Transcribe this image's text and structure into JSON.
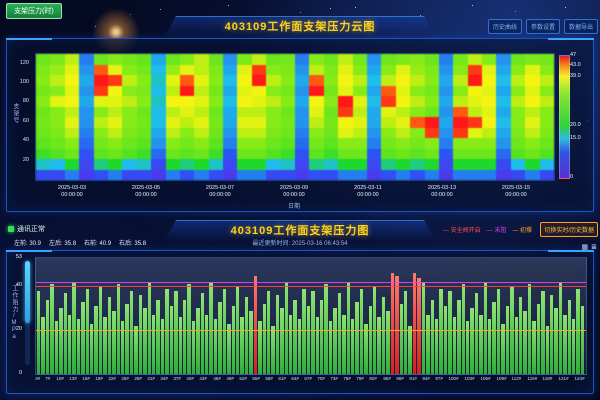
{
  "page": {
    "top_left_button": "支架压力(时)"
  },
  "cloud_section": {
    "title": "403109工作面支架压力云图",
    "buttons": [
      "历史曲线",
      "参数设置",
      "数据导出"
    ]
  },
  "pressure_section": {
    "title": "403109工作面支架压力图",
    "status_label": "通讯正常",
    "legend": [
      {
        "label": "安全阀开启",
        "color": "#ff4d4d"
      },
      {
        "label": "末阻",
        "color": "#e040fb"
      },
      {
        "label": "初撑",
        "color": "#ffa726"
      }
    ],
    "switch_button": "切换实时/历史数据",
    "readouts": [
      {
        "label": "左前",
        "value": "30.9"
      },
      {
        "label": "左后",
        "value": "35.8"
      },
      {
        "label": "右前",
        "value": "40.9"
      },
      {
        "label": "右后",
        "value": "35.8"
      }
    ],
    "update_time": "最近更新时间: 2025-03-16 06:43:54"
  },
  "chart_data": [
    {
      "type": "heatmap",
      "title": "403109工作面支架压力云图",
      "xlabel": "日期",
      "ylabel": "支架号",
      "x_range": [
        "2025-03-02 00:00:00",
        "2025-03-16 00:00:00"
      ],
      "x_ticks": [
        {
          "date": "2025-03-03",
          "time": "00:00:00"
        },
        {
          "date": "2025-03-05",
          "time": "00:00:00"
        },
        {
          "date": "2025-03-07",
          "time": "00:00:00"
        },
        {
          "date": "2025-03-09",
          "time": "00:00:00"
        },
        {
          "date": "2025-03-11",
          "time": "00:00:00"
        },
        {
          "date": "2025-03-13",
          "time": "00:00:00"
        },
        {
          "date": "2025-03-15",
          "time": "00:00:00"
        }
      ],
      "y_range": [
        0,
        130
      ],
      "y_ticks": [
        120,
        100,
        80,
        60,
        40,
        20
      ],
      "zlim": [
        0,
        47
      ],
      "colorbar_ticks": [
        {
          "label": "47",
          "value": 47
        },
        {
          "label": "43.0",
          "value": 43
        },
        {
          "label": "39.0",
          "value": 39
        },
        {
          "label": "20.0",
          "value": 20
        },
        {
          "label": "15.0",
          "value": 15
        },
        {
          "label": "0",
          "value": 0
        }
      ],
      "values": [
        [
          30,
          32,
          36,
          12,
          30,
          33,
          31,
          29,
          14,
          30,
          33,
          36,
          30,
          13,
          32,
          36,
          30,
          31,
          12,
          33,
          30,
          36,
          31,
          13,
          30,
          32,
          33,
          30,
          12,
          31,
          36,
          33,
          13,
          30,
          32,
          31
        ],
        [
          32,
          34,
          38,
          13,
          45,
          38,
          33,
          31,
          15,
          34,
          38,
          36,
          32,
          14,
          38,
          46,
          33,
          32,
          13,
          36,
          32,
          38,
          33,
          14,
          33,
          38,
          34,
          32,
          13,
          33,
          46,
          38,
          14,
          33,
          38,
          33
        ],
        [
          33,
          36,
          39,
          14,
          47,
          46,
          36,
          33,
          16,
          38,
          45,
          38,
          33,
          15,
          39,
          47,
          36,
          33,
          14,
          45,
          33,
          39,
          36,
          15,
          36,
          39,
          36,
          33,
          14,
          36,
          47,
          39,
          15,
          36,
          39,
          36
        ],
        [
          31,
          33,
          38,
          13,
          46,
          39,
          33,
          32,
          15,
          36,
          47,
          36,
          31,
          14,
          38,
          39,
          33,
          31,
          13,
          47,
          31,
          38,
          33,
          14,
          45,
          38,
          33,
          31,
          13,
          33,
          39,
          38,
          14,
          33,
          38,
          33
        ],
        [
          33,
          38,
          39,
          14,
          38,
          38,
          36,
          33,
          16,
          39,
          39,
          38,
          33,
          15,
          39,
          38,
          36,
          33,
          14,
          39,
          33,
          47,
          38,
          15,
          46,
          39,
          36,
          33,
          14,
          36,
          38,
          39,
          15,
          36,
          39,
          36
        ],
        [
          30,
          33,
          36,
          13,
          33,
          36,
          33,
          30,
          15,
          36,
          38,
          36,
          30,
          14,
          36,
          36,
          33,
          30,
          13,
          38,
          30,
          46,
          36,
          14,
          38,
          36,
          33,
          30,
          13,
          45,
          36,
          38,
          14,
          33,
          36,
          33
        ],
        [
          31,
          33,
          38,
          13,
          36,
          38,
          33,
          31,
          15,
          38,
          36,
          38,
          31,
          14,
          38,
          38,
          33,
          31,
          13,
          36,
          31,
          39,
          38,
          14,
          36,
          38,
          45,
          47,
          14,
          47,
          46,
          39,
          15,
          33,
          38,
          33
        ],
        [
          30,
          32,
          36,
          12,
          33,
          36,
          32,
          30,
          14,
          36,
          33,
          36,
          30,
          13,
          36,
          36,
          32,
          30,
          12,
          33,
          30,
          38,
          36,
          13,
          33,
          36,
          33,
          46,
          13,
          46,
          38,
          36,
          14,
          32,
          36,
          32
        ],
        [
          28,
          30,
          33,
          11,
          31,
          33,
          30,
          28,
          13,
          33,
          31,
          33,
          28,
          12,
          33,
          33,
          30,
          28,
          11,
          31,
          28,
          33,
          33,
          12,
          31,
          33,
          31,
          33,
          12,
          33,
          33,
          33,
          13,
          30,
          33,
          30
        ],
        [
          24,
          27,
          30,
          9,
          28,
          30,
          27,
          24,
          11,
          30,
          28,
          30,
          24,
          10,
          30,
          30,
          27,
          24,
          9,
          28,
          24,
          30,
          30,
          10,
          28,
          30,
          28,
          30,
          10,
          30,
          30,
          30,
          11,
          27,
          30,
          27
        ],
        [
          16,
          15,
          20,
          6,
          18,
          20,
          15,
          16,
          7,
          20,
          18,
          20,
          16,
          6,
          20,
          20,
          15,
          16,
          6,
          18,
          16,
          20,
          20,
          7,
          18,
          20,
          18,
          20,
          6,
          20,
          20,
          20,
          7,
          15,
          20,
          15
        ],
        [
          8,
          7,
          12,
          4,
          9,
          12,
          7,
          8,
          4,
          12,
          9,
          12,
          8,
          4,
          12,
          12,
          7,
          8,
          4,
          9,
          8,
          12,
          12,
          4,
          9,
          12,
          9,
          12,
          4,
          12,
          12,
          12,
          4,
          7,
          12,
          7
        ]
      ]
    },
    {
      "type": "bar",
      "title": "403109工作面支架压力图",
      "xlabel": "",
      "ylabel": "工作阻力/MPa",
      "ylim": [
        0,
        53
      ],
      "y_ticks": [
        53,
        40,
        20,
        0
      ],
      "num_bars": 124,
      "x_tick_labels": [
        "4#",
        "7#",
        "10#",
        "13#",
        "16#",
        "19#",
        "22#",
        "25#",
        "28#",
        "31#",
        "34#",
        "37#",
        "40#",
        "43#",
        "46#",
        "49#",
        "52#",
        "55#",
        "58#",
        "61#",
        "64#",
        "67#",
        "70#",
        "73#",
        "76#",
        "79#",
        "82#",
        "85#",
        "88#",
        "91#",
        "94#",
        "97#",
        "100#",
        "103#",
        "106#",
        "109#",
        "112#",
        "115#",
        "118#",
        "121#",
        "124#"
      ],
      "values": [
        38,
        26,
        34,
        41,
        24,
        30,
        37,
        27,
        42,
        25,
        33,
        39,
        23,
        31,
        40,
        26,
        35,
        29,
        41,
        24,
        32,
        38,
        22,
        36,
        30,
        42,
        27,
        34,
        25,
        39,
        31,
        38,
        26,
        34,
        41,
        24,
        30,
        37,
        27,
        42,
        25,
        33,
        39,
        23,
        31,
        40,
        26,
        35,
        29,
        45,
        24,
        32,
        38,
        22,
        36,
        30,
        42,
        27,
        34,
        25,
        39,
        31,
        38,
        26,
        34,
        41,
        24,
        30,
        37,
        27,
        42,
        25,
        33,
        39,
        23,
        31,
        40,
        26,
        35,
        29,
        46,
        45,
        32,
        38,
        22,
        46,
        44,
        42,
        27,
        34,
        25,
        39,
        31,
        38,
        26,
        34,
        41,
        24,
        30,
        37,
        27,
        42,
        25,
        33,
        39,
        23,
        31,
        40,
        26,
        35,
        29,
        41,
        24,
        32,
        38,
        22,
        36,
        30,
        42,
        27,
        34,
        25,
        39,
        31
      ],
      "alarm_supports": [
        50,
        81,
        82,
        86,
        87
      ],
      "ref_lines": [
        {
          "label": "末阻",
          "value": 42,
          "color": "#e040fb"
        },
        {
          "label": "安全阀开启",
          "value": 40,
          "color": "#ff4040"
        },
        {
          "label": "初撑",
          "value": 20,
          "color": "#ffa726"
        }
      ],
      "bar_color": "#2fae3a",
      "alarm_color": "#d42020"
    }
  ]
}
